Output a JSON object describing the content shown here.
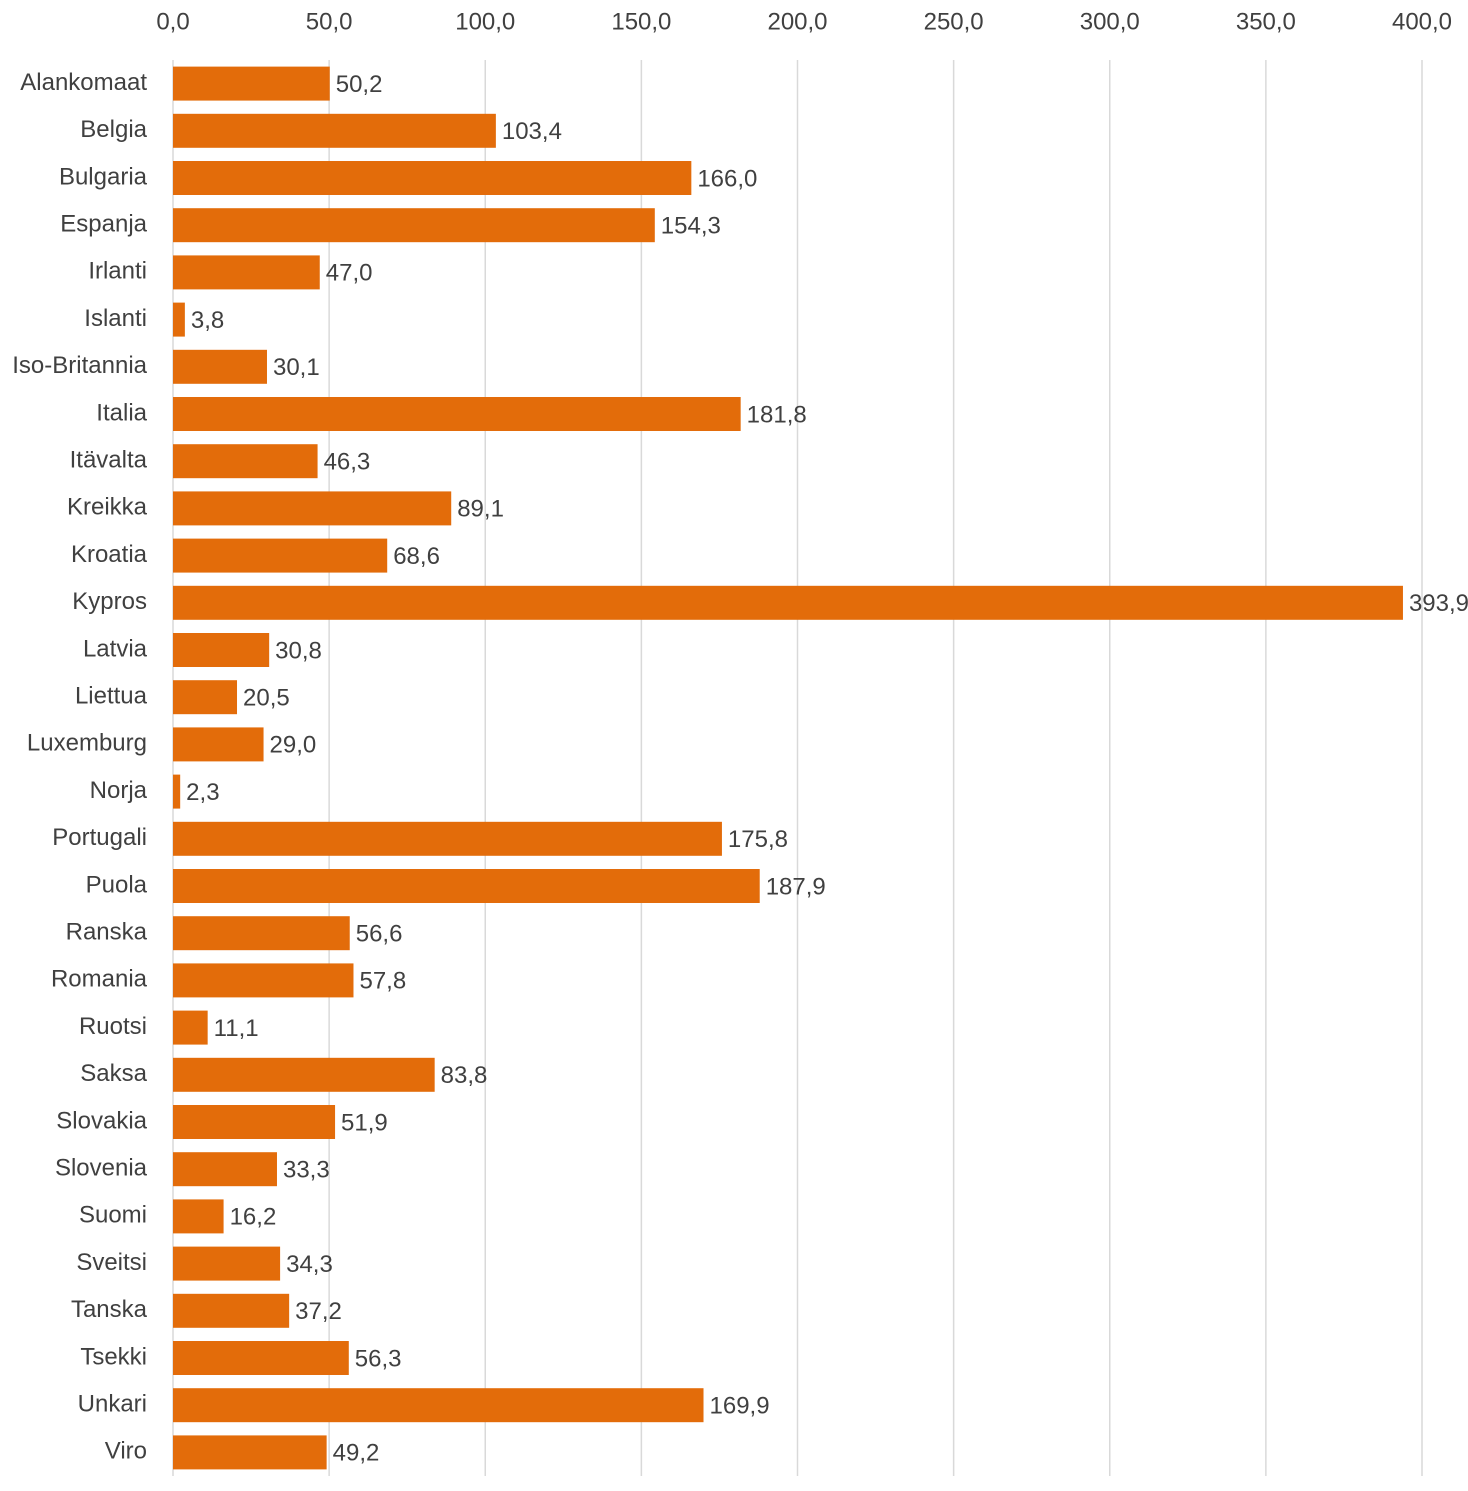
{
  "chart_data": {
    "type": "bar",
    "orientation": "horizontal",
    "title": "",
    "xlabel": "",
    "ylabel": "",
    "xlim": [
      0,
      400
    ],
    "ticks": [
      "0,0",
      "50,0",
      "100,0",
      "150,0",
      "200,0",
      "250,0",
      "300,0",
      "350,0",
      "400,0"
    ],
    "tick_values": [
      0,
      50,
      100,
      150,
      200,
      250,
      300,
      350,
      400
    ],
    "axis_position": "top",
    "grid": true,
    "legend": "none",
    "bar_color": "#E36C0A",
    "categories": [
      "Alankomaat",
      "Belgia",
      "Bulgaria",
      "Espanja",
      "Irlanti",
      "Islanti",
      "Iso-Britannia",
      "Italia",
      "Itävalta",
      "Kreikka",
      "Kroatia",
      "Kypros",
      "Latvia",
      "Liettua",
      "Luxemburg",
      "Norja",
      "Portugali",
      "Puola",
      "Ranska",
      "Romania",
      "Ruotsi",
      "Saksa",
      "Slovakia",
      "Slovenia",
      "Suomi",
      "Sveitsi",
      "Tanska",
      "Tsekki",
      "Unkari",
      "Viro"
    ],
    "values": [
      50.2,
      103.4,
      166.0,
      154.3,
      47.0,
      3.8,
      30.1,
      181.8,
      46.3,
      89.1,
      68.6,
      393.9,
      30.8,
      20.5,
      29.0,
      2.3,
      175.8,
      187.9,
      56.6,
      57.8,
      11.1,
      83.8,
      51.9,
      33.3,
      16.2,
      34.3,
      37.2,
      56.3,
      169.9,
      49.2
    ],
    "value_labels": [
      "50,2",
      "103,4",
      "166,0",
      "154,3",
      "47,0",
      "3,8",
      "30,1",
      "181,8",
      "46,3",
      "89,1",
      "68,6",
      "393,9",
      "30,8",
      "20,5",
      "29,0",
      "2,3",
      "175,8",
      "187,9",
      "56,6",
      "57,8",
      "11,1",
      "83,8",
      "51,9",
      "33,3",
      "16,2",
      "34,3",
      "37,2",
      "56,3",
      "169,9",
      "49,2"
    ]
  }
}
